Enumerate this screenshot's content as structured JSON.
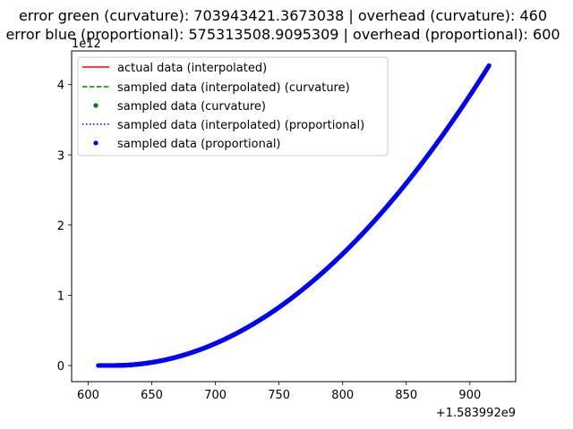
{
  "chart_data": {
    "type": "scatter",
    "title_lines": [
      "error green (curvature): 703943421.3673038 | overhead (curvature): 460",
      "error blue (proportional): 575313508.9095309 | overhead (proportional): 600"
    ],
    "xlabel": "",
    "ylabel": "",
    "x_offset_label": "+1.583992e9",
    "y_scale_label": "1e12",
    "xlim": [
      587,
      936
    ],
    "ylim": [
      -0.23,
      4.48
    ],
    "x_ticks": [
      600,
      650,
      700,
      750,
      800,
      850,
      900
    ],
    "y_ticks": [
      0,
      1,
      2,
      3,
      4
    ],
    "curve": {
      "x_start": 608,
      "x_end": 915,
      "flat_until": 620,
      "y_end": 4.27,
      "power": 2
    },
    "grid": false,
    "legend_position": "top-left",
    "series": [
      {
        "name": "actual data (interpolated)",
        "style": "solid-line",
        "color": "#ff0000"
      },
      {
        "name": "sampled data (interpolated) (curvature)",
        "style": "dashed-line",
        "color": "#008000"
      },
      {
        "name": "sampled data (curvature)",
        "style": "dot",
        "color": "#008000"
      },
      {
        "name": "sampled data (interpolated) (proportional)",
        "style": "dotted-line",
        "color": "#0000ff"
      },
      {
        "name": "sampled data (proportional)",
        "style": "dot",
        "color": "#0000ff"
      }
    ]
  }
}
